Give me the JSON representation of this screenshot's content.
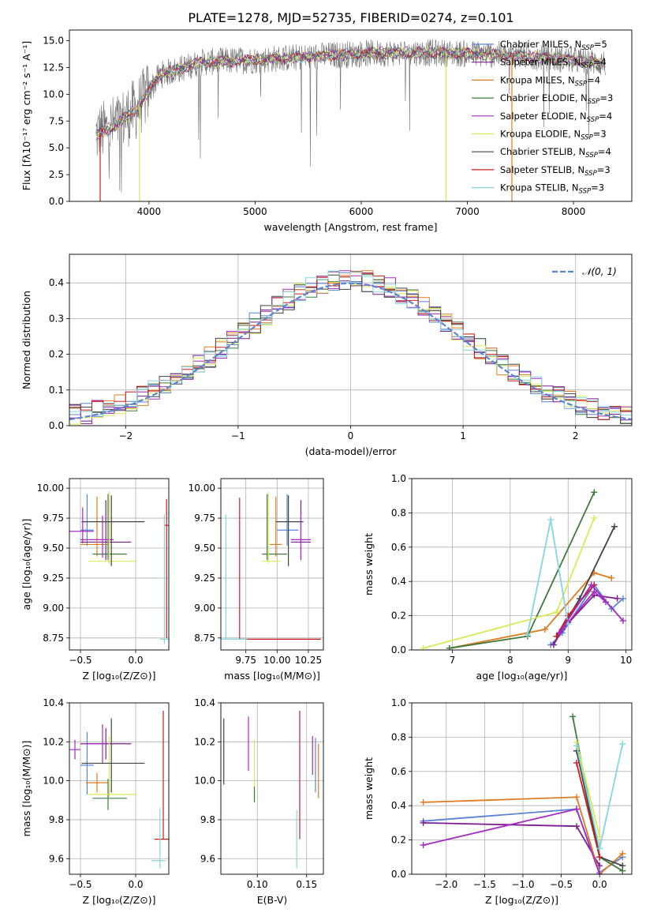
{
  "figure": {
    "title": "PLATE=1278, MJD=52735, FIBERID=0274, z=0.101"
  },
  "series_styles": [
    {
      "name": "Chabrier MILES",
      "nssp": "5",
      "color": "#5b84d6"
    },
    {
      "name": "Salpeter MILES",
      "nssp": "4",
      "color": "#7b1d8e"
    },
    {
      "name": "Kroupa MILES",
      "nssp": "4",
      "color": "#e07b20"
    },
    {
      "name": "Chabrier ELODIE",
      "nssp": "3",
      "color": "#3e7a3e"
    },
    {
      "name": "Salpeter ELODIE",
      "nssp": "4",
      "color": "#a32cc4"
    },
    {
      "name": "Kroupa ELODIE",
      "nssp": "3",
      "color": "#d9ea5a"
    },
    {
      "name": "Chabrier STELIB",
      "nssp": "4",
      "color": "#444444"
    },
    {
      "name": "Salpeter STELIB",
      "nssp": "3",
      "color": "#c81e1e"
    },
    {
      "name": "Kroupa STELIB",
      "nssp": "3",
      "color": "#84d6dc"
    }
  ],
  "chart_data": [
    {
      "id": "spectrum",
      "type": "line",
      "xlabel": "wavelength [Angstrom, rest frame]",
      "ylabel": "Flux [fλ10⁻¹⁷ erg cm⁻² s⁻¹ A⁻¹]",
      "xlim": [
        3250,
        8550
      ],
      "ylim": [
        0,
        16
      ],
      "xticks": [
        4000,
        5000,
        6000,
        7000,
        8000
      ],
      "yticks": [
        0.0,
        2.5,
        5.0,
        7.5,
        10.0,
        12.5,
        15.0
      ],
      "grid": false,
      "legend": "top-right",
      "continuum": {
        "x": [
          3500,
          3700,
          3900,
          4100,
          4300,
          4500,
          5000,
          5500,
          6000,
          6500,
          7000,
          7500,
          8000,
          8300
        ],
        "y": [
          6.2,
          7.2,
          8.8,
          11.8,
          12.4,
          13.0,
          13.2,
          13.5,
          13.8,
          13.9,
          13.8,
          13.6,
          13.2,
          12.9
        ]
      },
      "model_dips": [
        {
          "series": "Salpeter STELIB",
          "x": 3540
        },
        {
          "series": "Kroupa ELODIE",
          "x": 3910
        },
        {
          "series": "Kroupa ELODIE",
          "x": 6800
        },
        {
          "series": "Kroupa MILES",
          "x": 7420
        }
      ]
    },
    {
      "id": "residuals",
      "type": "histogram",
      "xlabel": "(data-model)/error",
      "ylabel": "Normed distribution",
      "xlim": [
        -2.5,
        2.5
      ],
      "ylim": [
        0,
        0.48
      ],
      "xticks": [
        -2,
        -1,
        0,
        1,
        2
      ],
      "yticks": [
        0.0,
        0.1,
        0.2,
        0.3,
        0.4
      ],
      "grid": true,
      "legend": "top-right",
      "reference_label": "𝒩(0, 1)",
      "reference_color": "#5b84d6",
      "bin_width": 0.1
    },
    {
      "id": "age-vs-Z",
      "type": "errorbar",
      "xlabel": "Z [log₁₀(Z/Z⊙)]",
      "ylabel": "age  [log₁₀(age/yr)]",
      "xlim": [
        -0.6,
        0.3
      ],
      "ylim": [
        8.65,
        10.08
      ],
      "xticks": [
        -0.5,
        0.0
      ],
      "yticks": [
        8.75,
        9.0,
        9.25,
        9.5,
        9.75,
        10.0
      ],
      "grid": true,
      "points": [
        {
          "series": "Chabrier MILES",
          "x": -0.44,
          "xerr": [
            0.06,
            0.06
          ],
          "y": 9.65,
          "yerr": [
            0.13,
            0.3
          ]
        },
        {
          "series": "Salpeter MILES",
          "x": -0.27,
          "xerr": [
            0.23,
            0.23
          ],
          "y": 9.55,
          "yerr": [
            0.15,
            0.35
          ]
        },
        {
          "series": "Kroupa MILES",
          "x": -0.35,
          "xerr": [
            0.15,
            0.1
          ],
          "y": 9.53,
          "yerr": [
            0.1,
            0.4
          ]
        },
        {
          "series": "Chabrier ELODIE",
          "x": -0.25,
          "xerr": [
            0.14,
            0.17
          ],
          "y": 9.45,
          "yerr": [
            0.05,
            0.5
          ]
        },
        {
          "series": "Salpeter ELODIE",
          "x": -0.3,
          "xerr": [
            0.2,
            0.1
          ],
          "y": 9.57,
          "yerr": [
            0.15,
            0.2
          ]
        },
        {
          "series": "Kroupa ELODIE",
          "x": -0.24,
          "xerr": [
            0.19,
            0.24
          ],
          "y": 9.39,
          "yerr": [
            0.02,
            0.58
          ]
        },
        {
          "series": "Chabrier STELIB",
          "x": -0.22,
          "xerr": [
            0.27,
            0.3
          ],
          "y": 9.72,
          "yerr": [
            0.37,
            0.22
          ]
        },
        {
          "series": "Salpeter STELIB",
          "x": 0.28,
          "xerr": [
            0.02,
            0.02
          ],
          "y": 9.69,
          "yerr": [
            0.94,
            0.22
          ]
        },
        {
          "series": "Kroupa STELIB",
          "x": 0.26,
          "xerr": [
            0.04,
            0.04
          ],
          "y": 8.74,
          "yerr": [
            0.04,
            1.04
          ]
        },
        {
          "series": "Salpeter ELODIE",
          "x": -0.48,
          "xerr": [
            0.15,
            0.1
          ],
          "y": 9.64,
          "yerr": [
            0.1,
            0.2
          ]
        }
      ]
    },
    {
      "id": "age-vs-mass",
      "type": "errorbar",
      "xlabel": "mass [log₁₀(M/M⊙)]",
      "ylabel": "",
      "xlim": [
        9.55,
        10.37
      ],
      "ylim": [
        8.65,
        10.08
      ],
      "xticks": [
        9.75,
        10.0,
        10.25
      ],
      "yticks": [
        8.75,
        9.0,
        9.25,
        9.5,
        9.75,
        10.0
      ],
      "grid": true,
      "points": [
        {
          "series": "Chabrier MILES",
          "x": 10.08,
          "xerr": [
            0.08,
            0.09
          ],
          "y": 9.65,
          "yerr": [
            0.13,
            0.3
          ]
        },
        {
          "series": "Salpeter MILES",
          "x": 10.19,
          "xerr": [
            0.08,
            0.08
          ],
          "y": 9.55,
          "yerr": [
            0.15,
            0.35
          ]
        },
        {
          "series": "Kroupa MILES",
          "x": 9.99,
          "xerr": [
            0.05,
            0.05
          ],
          "y": 9.53,
          "yerr": [
            0.1,
            0.4
          ]
        },
        {
          "series": "Chabrier ELODIE",
          "x": 9.92,
          "xerr": [
            0.04,
            0.16
          ],
          "y": 9.45,
          "yerr": [
            0.05,
            0.5
          ]
        },
        {
          "series": "Salpeter ELODIE",
          "x": 10.19,
          "xerr": [
            0.08,
            0.08
          ],
          "y": 9.57,
          "yerr": [
            0.15,
            0.2
          ]
        },
        {
          "series": "Kroupa ELODIE",
          "x": 9.93,
          "xerr": [
            0.05,
            0.1
          ],
          "y": 9.39,
          "yerr": [
            0.02,
            0.58
          ]
        },
        {
          "series": "Chabrier STELIB",
          "x": 10.09,
          "xerr": [
            0.1,
            0.12
          ],
          "y": 9.72,
          "yerr": [
            0.37,
            0.22
          ]
        },
        {
          "series": "Salpeter STELIB",
          "x": 9.7,
          "xerr": [
            0.0,
            0.65
          ],
          "y": 8.74,
          "yerr": [
            0.0,
            1.18
          ]
        },
        {
          "series": "Kroupa STELIB",
          "x": 9.59,
          "xerr": [
            0.04,
            0.17
          ],
          "y": 8.74,
          "yerr": [
            0.0,
            1.04
          ]
        }
      ]
    },
    {
      "id": "weight-vs-age",
      "type": "line",
      "xlabel": "age  [log₁₀(age/yr)]",
      "ylabel": "mass weight",
      "xlim": [
        6.3,
        10.1
      ],
      "ylim": [
        0,
        1.0
      ],
      "xticks": [
        7,
        8,
        9,
        10
      ],
      "yticks": [
        0.0,
        0.2,
        0.4,
        0.6,
        0.8,
        1.0
      ],
      "grid": true,
      "series": [
        {
          "name": "Chabrier MILES",
          "x": [
            8.7,
            8.9,
            9.45,
            9.75,
            9.95
          ],
          "y": [
            0.03,
            0.1,
            0.38,
            0.24,
            0.3
          ]
        },
        {
          "name": "Salpeter MILES",
          "x": [
            8.75,
            8.9,
            9.45,
            9.85
          ],
          "y": [
            0.03,
            0.12,
            0.32,
            0.3
          ]
        },
        {
          "name": "Kroupa MILES",
          "x": [
            6.95,
            8.6,
            9.45,
            9.75
          ],
          "y": [
            0.01,
            0.12,
            0.45,
            0.42
          ]
        },
        {
          "name": "Chabrier ELODIE",
          "x": [
            6.95,
            8.3,
            9.45
          ],
          "y": [
            0.01,
            0.08,
            0.92
          ]
        },
        {
          "name": "Salpeter ELODIE",
          "x": [
            8.8,
            9.0,
            9.45,
            9.65
          ],
          "y": [
            0.08,
            0.16,
            0.34,
            0.28
          ]
        },
        {
          "name": "Kroupa ELODIE",
          "x": [
            6.5,
            8.8,
            9.45
          ],
          "y": [
            0.01,
            0.22,
            0.77
          ]
        },
        {
          "name": "Chabrier STELIB",
          "x": [
            8.85,
            9.2,
            9.8
          ],
          "y": [
            0.1,
            0.3,
            0.72
          ]
        },
        {
          "name": "Salpeter STELIB",
          "x": [
            8.8,
            9.0,
            9.45
          ],
          "y": [
            0.08,
            0.2,
            0.38
          ]
        },
        {
          "name": "Kroupa STELIB",
          "x": [
            8.3,
            8.7,
            9.0
          ],
          "y": [
            0.09,
            0.76,
            0.15
          ]
        },
        {
          "name": "Salpeter ELODIE",
          "x": [
            8.85,
            9.4,
            9.95
          ],
          "y": [
            0.1,
            0.38,
            0.17
          ]
        }
      ]
    },
    {
      "id": "mass-vs-Z",
      "type": "errorbar",
      "xlabel": "Z [log₁₀(Z/Z⊙)]",
      "ylabel": "mass [log₁₀(M/M⊙)]",
      "xlim": [
        -0.6,
        0.3
      ],
      "ylim": [
        9.52,
        10.4
      ],
      "xticks": [
        -0.5,
        0.0
      ],
      "yticks": [
        9.6,
        9.8,
        10.0,
        10.2,
        10.4
      ],
      "grid": true,
      "points": [
        {
          "series": "Chabrier MILES",
          "x": -0.44,
          "xerr": [
            0.06,
            0.06
          ],
          "y": 10.08,
          "yerr": [
            0.15,
            0.17
          ]
        },
        {
          "series": "Salpeter MILES",
          "x": -0.27,
          "xerr": [
            0.23,
            0.23
          ],
          "y": 10.19,
          "yerr": [
            0.08,
            0.08
          ]
        },
        {
          "series": "Kroupa MILES",
          "x": -0.35,
          "xerr": [
            0.1,
            0.1
          ],
          "y": 9.99,
          "yerr": [
            0.05,
            0.05
          ]
        },
        {
          "series": "Chabrier ELODIE",
          "x": -0.25,
          "xerr": [
            0.14,
            0.17
          ],
          "y": 9.91,
          "yerr": [
            0.06,
            0.1
          ]
        },
        {
          "series": "Salpeter ELODIE",
          "x": -0.3,
          "xerr": [
            0.2,
            0.1
          ],
          "y": 10.19,
          "yerr": [
            0.1,
            0.1
          ]
        },
        {
          "series": "Kroupa ELODIE",
          "x": -0.24,
          "xerr": [
            0.19,
            0.24
          ],
          "y": 9.93,
          "yerr": [
            0.02,
            0.3
          ]
        },
        {
          "series": "Chabrier STELIB",
          "x": -0.22,
          "xerr": [
            0.27,
            0.3
          ],
          "y": 10.09,
          "yerr": [
            0.15,
            0.23
          ]
        },
        {
          "series": "Salpeter STELIB",
          "x": 0.25,
          "xerr": [
            0.08,
            0.05
          ],
          "y": 9.7,
          "yerr": [
            0.0,
            0.66
          ]
        },
        {
          "series": "Kroupa STELIB",
          "x": 0.22,
          "xerr": [
            0.08,
            0.05
          ],
          "y": 9.59,
          "yerr": [
            0.04,
            0.27
          ]
        },
        {
          "series": "Salpeter ELODIE",
          "x": -0.55,
          "xerr": [
            0.1,
            0.05
          ],
          "y": 10.16,
          "yerr": [
            0.05,
            0.05
          ]
        }
      ]
    },
    {
      "id": "mass-vs-EBV",
      "type": "errorbar",
      "xlabel": "E(B-V)",
      "ylabel": "",
      "xlim": [
        0.063,
        0.167
      ],
      "ylim": [
        9.52,
        10.4
      ],
      "xticks": [
        0.1,
        0.15
      ],
      "yticks": [
        9.6,
        9.8,
        10.0,
        10.2,
        10.4
      ],
      "grid": true,
      "points": [
        {
          "series": "Chabrier STELIB",
          "x": 0.066,
          "xerr": [
            0,
            0
          ],
          "y": 10.15,
          "yerr": [
            0.17,
            0.17
          ]
        },
        {
          "series": "Salpeter ELODIE",
          "x": 0.091,
          "xerr": [
            0,
            0
          ],
          "y": 10.19,
          "yerr": [
            0.14,
            0.14
          ]
        },
        {
          "series": "Kroupa ELODIE",
          "x": 0.097,
          "xerr": [
            0,
            0
          ],
          "y": 10.05,
          "yerr": [
            0.16,
            0.16
          ]
        },
        {
          "series": "Chabrier ELODIE",
          "x": 0.097,
          "xerr": [
            0,
            0
          ],
          "y": 9.93,
          "yerr": [
            0.04,
            0.04
          ]
        },
        {
          "series": "Kroupa STELIB",
          "x": 0.14,
          "xerr": [
            0,
            0
          ],
          "y": 9.7,
          "yerr": [
            0.15,
            0.15
          ]
        },
        {
          "series": "Salpeter STELIB",
          "x": 0.143,
          "xerr": [
            0,
            0
          ],
          "y": 10.03,
          "yerr": [
            0.33,
            0.33
          ]
        },
        {
          "series": "Salpeter ELODIE",
          "x": 0.156,
          "xerr": [
            0,
            0
          ],
          "y": 10.13,
          "yerr": [
            0.1,
            0.1
          ]
        },
        {
          "series": "Chabrier MILES",
          "x": 0.159,
          "xerr": [
            0,
            0
          ],
          "y": 10.08,
          "yerr": [
            0.14,
            0.14
          ]
        },
        {
          "series": "Kroupa MILES",
          "x": 0.162,
          "xerr": [
            0,
            0
          ],
          "y": 10.05,
          "yerr": [
            0.14,
            0.14
          ]
        }
      ]
    },
    {
      "id": "weight-vs-Z",
      "type": "line",
      "xlabel": "Z [log₁₀(Z/Z⊙)]",
      "ylabel": "mass weight",
      "xlim": [
        -2.45,
        0.42
      ],
      "ylim": [
        0,
        1.0
      ],
      "xticks": [
        -2.0,
        -1.5,
        -1.0,
        -0.5,
        0.0
      ],
      "yticks": [
        0.0,
        0.2,
        0.4,
        0.6,
        0.8,
        1.0
      ],
      "grid": true,
      "series": [
        {
          "name": "Chabrier MILES",
          "x": [
            -2.3,
            -0.3,
            0.0,
            0.3
          ],
          "y": [
            0.31,
            0.38,
            0.01,
            0.1
          ]
        },
        {
          "name": "Salpeter MILES",
          "x": [
            -2.3,
            -0.3,
            0.0
          ],
          "y": [
            0.3,
            0.28,
            0.05
          ]
        },
        {
          "name": "Kroupa MILES",
          "x": [
            -2.3,
            -0.3,
            0.0,
            0.3
          ],
          "y": [
            0.42,
            0.45,
            0.0,
            0.12
          ]
        },
        {
          "name": "Chabrier ELODIE",
          "x": [
            -0.35,
            0.0,
            0.3
          ],
          "y": [
            0.92,
            0.1,
            0.02
          ]
        },
        {
          "name": "Salpeter ELODIE",
          "x": [
            -2.3,
            -0.3,
            0.0
          ],
          "y": [
            0.17,
            0.38,
            0.0
          ]
        },
        {
          "name": "Kroupa ELODIE",
          "x": [
            -0.3,
            0.0
          ],
          "y": [
            0.77,
            0.22
          ]
        },
        {
          "name": "Chabrier STELIB",
          "x": [
            -0.3,
            0.0,
            0.3
          ],
          "y": [
            0.72,
            0.1,
            0.05
          ]
        },
        {
          "name": "Salpeter STELIB",
          "x": [
            -0.3,
            0.0
          ],
          "y": [
            0.65,
            0.1
          ]
        },
        {
          "name": "Kroupa STELIB",
          "x": [
            -0.3,
            0.0,
            0.3
          ],
          "y": [
            0.75,
            0.15,
            0.76
          ]
        }
      ]
    }
  ]
}
